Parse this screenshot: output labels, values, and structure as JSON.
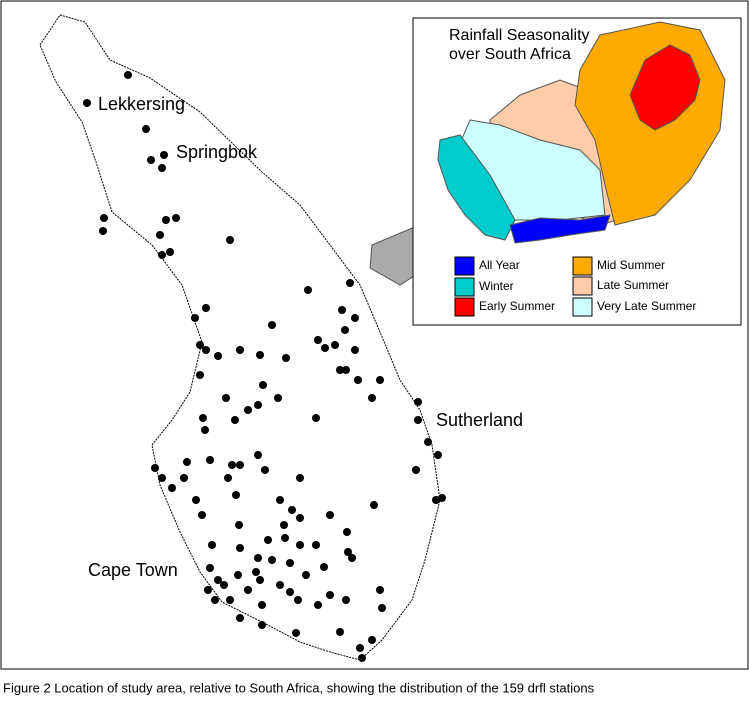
{
  "map": {
    "places": [
      "Lekkersing",
      "Springbok",
      "Sutherland",
      "Cape Town"
    ]
  },
  "inset": {
    "title": [
      "Rainfall Seasonality",
      "over South Africa"
    ],
    "legend": [
      {
        "label": "All Year",
        "color": "#0000ff"
      },
      {
        "label": "Winter",
        "color": "#00cccc"
      },
      {
        "label": "Early Summer",
        "color": "#ff0000"
      },
      {
        "label": "Mid Summer",
        "color": "#ffaa00"
      },
      {
        "label": "Late Summer",
        "color": "#ffccaa"
      },
      {
        "label": "Very Late Summer",
        "color": "#ccffff"
      }
    ]
  },
  "caption": "Figure 2 Location of study area, relative to South Africa, showing the distribution of the 159 drfl stations"
}
